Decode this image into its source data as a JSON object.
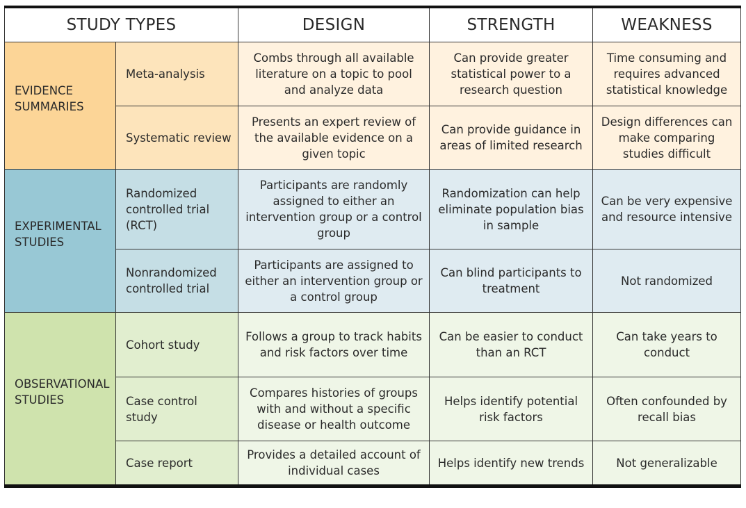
{
  "headers": [
    "STUDY TYPES",
    "DESIGN",
    "STRENGTH",
    "WEAKNESS"
  ],
  "groups": [
    {
      "name": "EVIDENCE SUMMARIES",
      "rows": [
        {
          "type": "Meta-analysis",
          "design": "Combs through all available literature on a topic to pool and analyze data",
          "strength": "Can provide greater statistical power to a research question",
          "weakness": "Time consuming and requires advanced statistical knowledge"
        },
        {
          "type": "Systematic review",
          "design": "Presents an expert review of the available evidence on a given topic",
          "strength": "Can provide guidance in areas of limited research",
          "weakness": "Design differences can make comparing studies difficult"
        }
      ]
    },
    {
      "name": "EXPERIMENTAL STUDIES",
      "rows": [
        {
          "type": "Randomized controlled trial (RCT)",
          "design": "Participants are randomly assigned to either an intervention group or a control group",
          "strength": "Randomization can help eliminate population bias in sample",
          "weakness": "Can be very expensive and resource intensive"
        },
        {
          "type": "Nonrandomized controlled trial",
          "design": "Participants are assigned to either an intervention group or a control group",
          "strength": "Can blind participants to treatment",
          "weakness": "Not randomized"
        }
      ]
    },
    {
      "name": "OBSERVATIONAL STUDIES",
      "rows": [
        {
          "type": "Cohort study",
          "design": "Follows a group to track habits and risk factors over time",
          "strength": "Can be easier to conduct than an RCT",
          "weakness": "Can take years to conduct"
        },
        {
          "type": "Case control study",
          "design": "Compares histories of groups with and without a specific disease or health outcome",
          "strength": "Helps identify potential risk factors",
          "weakness": "Often confounded by recall bias"
        },
        {
          "type": "Case report",
          "design": "Provides a detailed account of individual cases",
          "strength": "Helps identify new trends",
          "weakness": "Not generalizable"
        }
      ]
    }
  ]
}
